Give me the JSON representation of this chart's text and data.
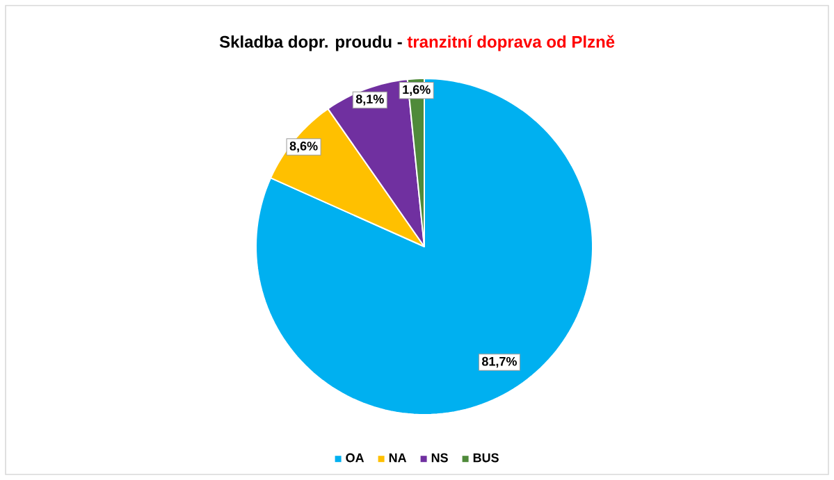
{
  "chart_data": {
    "type": "pie",
    "title": "Skladba dopr. proudu -",
    "subtitle": "tranzitní doprava od Plzně",
    "categories": [
      "OA",
      "NA",
      "NS",
      "BUS"
    ],
    "values": [
      81.7,
      8.6,
      8.1,
      1.6
    ],
    "value_labels": [
      "81,7%",
      "8,6%",
      "8,1%",
      "1,6%"
    ],
    "colors": [
      "#00b0f0",
      "#ffc000",
      "#7030a0",
      "#4f8a3a"
    ],
    "legend": "bottom"
  }
}
